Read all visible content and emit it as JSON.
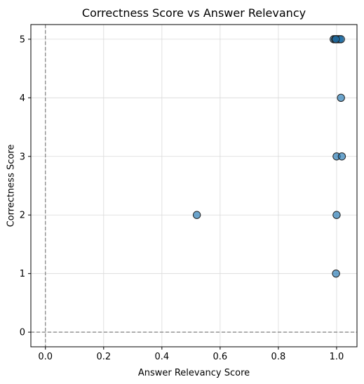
{
  "chart_data": {
    "type": "scatter",
    "title": "Correctness Score vs Answer Relevancy",
    "xlabel": "Answer Relevancy Score",
    "ylabel": "Correctness Score",
    "xlim": [
      -0.05,
      1.07
    ],
    "ylim": [
      -0.25,
      5.25
    ],
    "xticks": [
      "0.0",
      "0.2",
      "0.4",
      "0.6",
      "0.8",
      "1.0"
    ],
    "yticks": [
      "0",
      "1",
      "2",
      "3",
      "4",
      "5"
    ],
    "grid": true,
    "reference_lines": {
      "x": 0,
      "y": 0
    },
    "point_color": "#1f77b4",
    "point_edge_color": "#222222",
    "points": [
      {
        "x": 0.52,
        "y": 2
      },
      {
        "x": 0.998,
        "y": 1
      },
      {
        "x": 1.0,
        "y": 2
      },
      {
        "x": 1.0,
        "y": 3
      },
      {
        "x": 1.018,
        "y": 3
      },
      {
        "x": 1.015,
        "y": 4
      },
      {
        "x": 0.99,
        "y": 5
      },
      {
        "x": 0.995,
        "y": 5
      },
      {
        "x": 1.0,
        "y": 5
      },
      {
        "x": 1.005,
        "y": 5
      },
      {
        "x": 1.01,
        "y": 5
      },
      {
        "x": 1.015,
        "y": 5
      },
      {
        "x": 0.997,
        "y": 5
      }
    ]
  }
}
